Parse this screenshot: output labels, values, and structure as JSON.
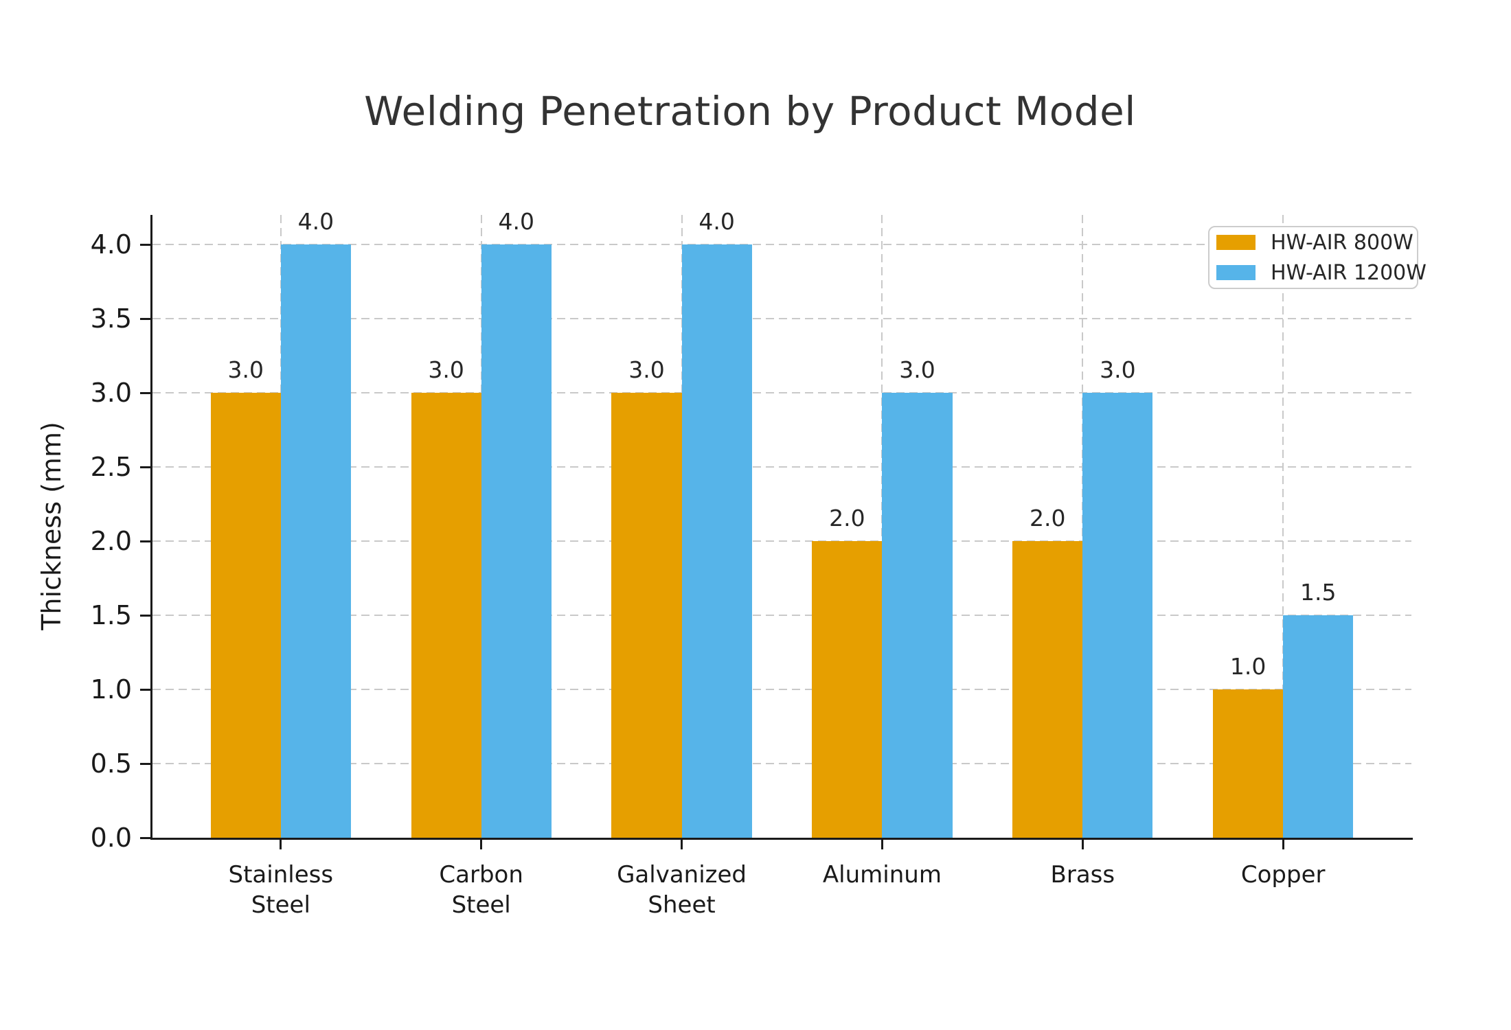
{
  "chart_data": {
    "type": "bar",
    "title": "Welding Penetration by Product Model",
    "xlabel": "",
    "ylabel": "Thickness (mm)",
    "categories": [
      "Stainless\nSteel",
      "Carbon\nSteel",
      "Galvanized\nSheet",
      "Aluminum",
      "Brass",
      "Copper"
    ],
    "series": [
      {
        "name": "HW-AIR 800W",
        "color": "#E69F00",
        "values": [
          3.0,
          3.0,
          3.0,
          2.0,
          2.0,
          1.0
        ]
      },
      {
        "name": "HW-AIR 1200W",
        "color": "#56B4E9",
        "values": [
          4.0,
          4.0,
          4.0,
          3.0,
          3.0,
          1.5
        ]
      }
    ],
    "ylim": [
      0,
      4.2
    ],
    "yticks": [
      0.0,
      0.5,
      1.0,
      1.5,
      2.0,
      2.5,
      3.0,
      3.5,
      4.0
    ],
    "grid": "dashed horizontal and vertical",
    "legend_position": "upper right",
    "bar_labels": "values shown above each bar with one decimal"
  },
  "colors": {
    "series_800w": "#E69F00",
    "series_1200w": "#56B4E9",
    "grid": "#c9c9c9",
    "axis": "#1a1a1a",
    "title_text": "#333333",
    "background": "#ffffff",
    "legend_border": "#cccccc"
  }
}
